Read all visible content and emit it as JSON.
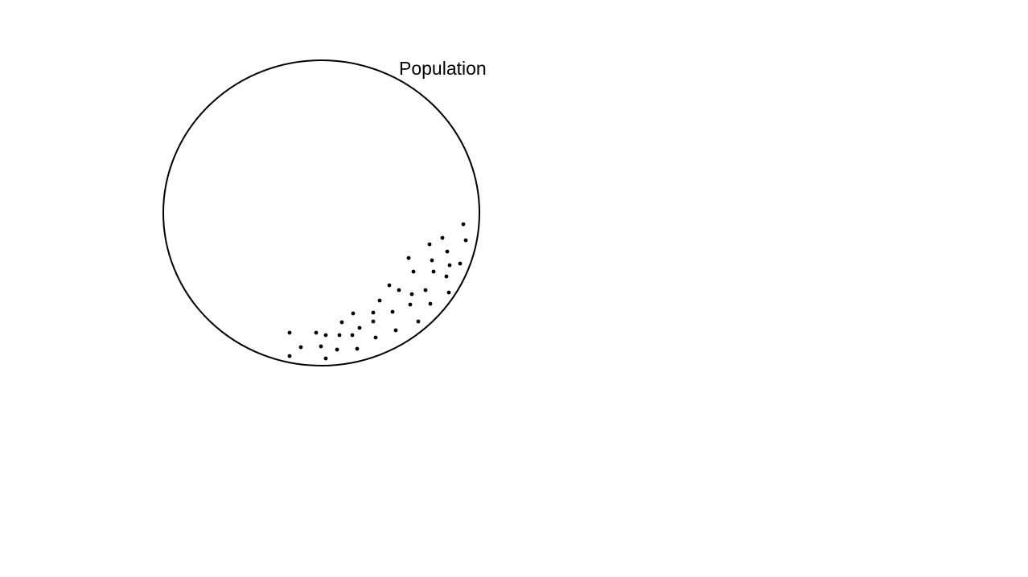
{
  "diagram": {
    "label": "Population",
    "colors": {
      "stroke": "#000000",
      "dot": "#000000",
      "background": "#ffffff"
    }
  }
}
